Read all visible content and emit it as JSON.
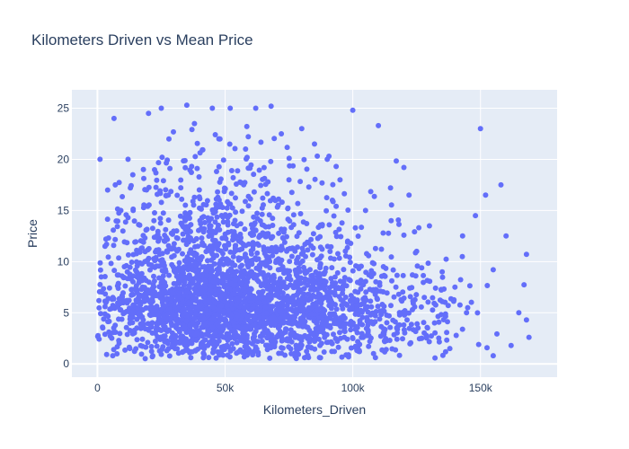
{
  "chart_data": {
    "type": "scatter",
    "title": "Kilometers Driven vs Mean Price",
    "xlabel": "Kilometers_Driven",
    "ylabel": "Price",
    "xlim": [
      -10000,
      180000
    ],
    "ylim": [
      -1.3,
      26.8
    ],
    "x_ticks": [
      0,
      50000,
      100000,
      150000
    ],
    "x_tick_labels": [
      "0",
      "50k",
      "100k",
      "150k"
    ],
    "y_ticks": [
      0,
      5,
      10,
      15,
      20,
      25
    ],
    "y_tick_labels": [
      "0",
      "5",
      "10",
      "15",
      "20",
      "25"
    ],
    "grid": true,
    "series": [
      {
        "color": "#636efa",
        "points": [
          [
            1000,
            20
          ],
          [
            6500,
            24
          ],
          [
            150000,
            23
          ],
          [
            152000,
            16.5
          ],
          [
            158000,
            17.5
          ],
          [
            100000,
            24.8
          ],
          [
            110000,
            23.3
          ],
          [
            120000,
            19.2
          ],
          [
            122000,
            16.5
          ],
          [
            130000,
            13.5
          ],
          [
            148000,
            14.5
          ],
          [
            143000,
            12.5
          ],
          [
            160000,
            12.5
          ],
          [
            168000,
            10.7
          ],
          [
            155000,
            9.2
          ],
          [
            165000,
            5
          ],
          [
            168000,
            4.3
          ],
          [
            169000,
            2.6
          ],
          [
            162000,
            1.8
          ],
          [
            155000,
            0.8
          ],
          [
            6000,
            0.8
          ],
          [
            3000,
            11.5
          ],
          [
            2000,
            3.6
          ],
          [
            1500,
            8.5
          ],
          [
            4000,
            17
          ],
          [
            7000,
            17.5
          ],
          [
            25000,
            25
          ],
          [
            35000,
            25.3
          ],
          [
            45000,
            25
          ],
          [
            52000,
            25
          ],
          [
            62000,
            25
          ],
          [
            68000,
            25.2
          ],
          [
            80000,
            23
          ],
          [
            85000,
            21.5
          ],
          [
            90000,
            20
          ],
          [
            95000,
            18
          ],
          [
            105000,
            15
          ],
          [
            115000,
            14
          ],
          [
            125000,
            11
          ],
          [
            135000,
            9
          ],
          [
            140000,
            7.5
          ],
          [
            145000,
            5.5
          ],
          [
            132000,
            4
          ],
          [
            127000,
            2.5
          ],
          [
            138000,
            1.5
          ],
          [
            118000,
            6.8
          ],
          [
            112000,
            9.5
          ],
          [
            102000,
            7
          ],
          [
            98000,
            12
          ],
          [
            92000,
            16
          ],
          [
            88000,
            13.5
          ],
          [
            75000,
            18
          ],
          [
            72000,
            22.5
          ],
          [
            58000,
            21
          ],
          [
            48000,
            22
          ],
          [
            38000,
            23.5
          ],
          [
            28000,
            22
          ],
          [
            18000,
            19
          ],
          [
            14000,
            15
          ],
          [
            10000,
            13
          ],
          [
            12000,
            20
          ],
          [
            20000,
            24.5
          ]
        ],
        "clusters": [
          {
            "cx": 50000,
            "cy": 5,
            "sx": 26000,
            "sy": 2.6,
            "n": 1700
          },
          {
            "cx": 45000,
            "cy": 9.5,
            "sx": 24000,
            "sy": 3.2,
            "n": 550
          },
          {
            "cx": 50000,
            "cy": 15,
            "sx": 22000,
            "sy": 3.6,
            "n": 260
          },
          {
            "cx": 105000,
            "cy": 4.5,
            "sx": 22000,
            "sy": 2.6,
            "n": 280
          },
          {
            "cx": 95000,
            "cy": 9.5,
            "sx": 20000,
            "sy": 3.5,
            "n": 120
          }
        ]
      }
    ]
  }
}
